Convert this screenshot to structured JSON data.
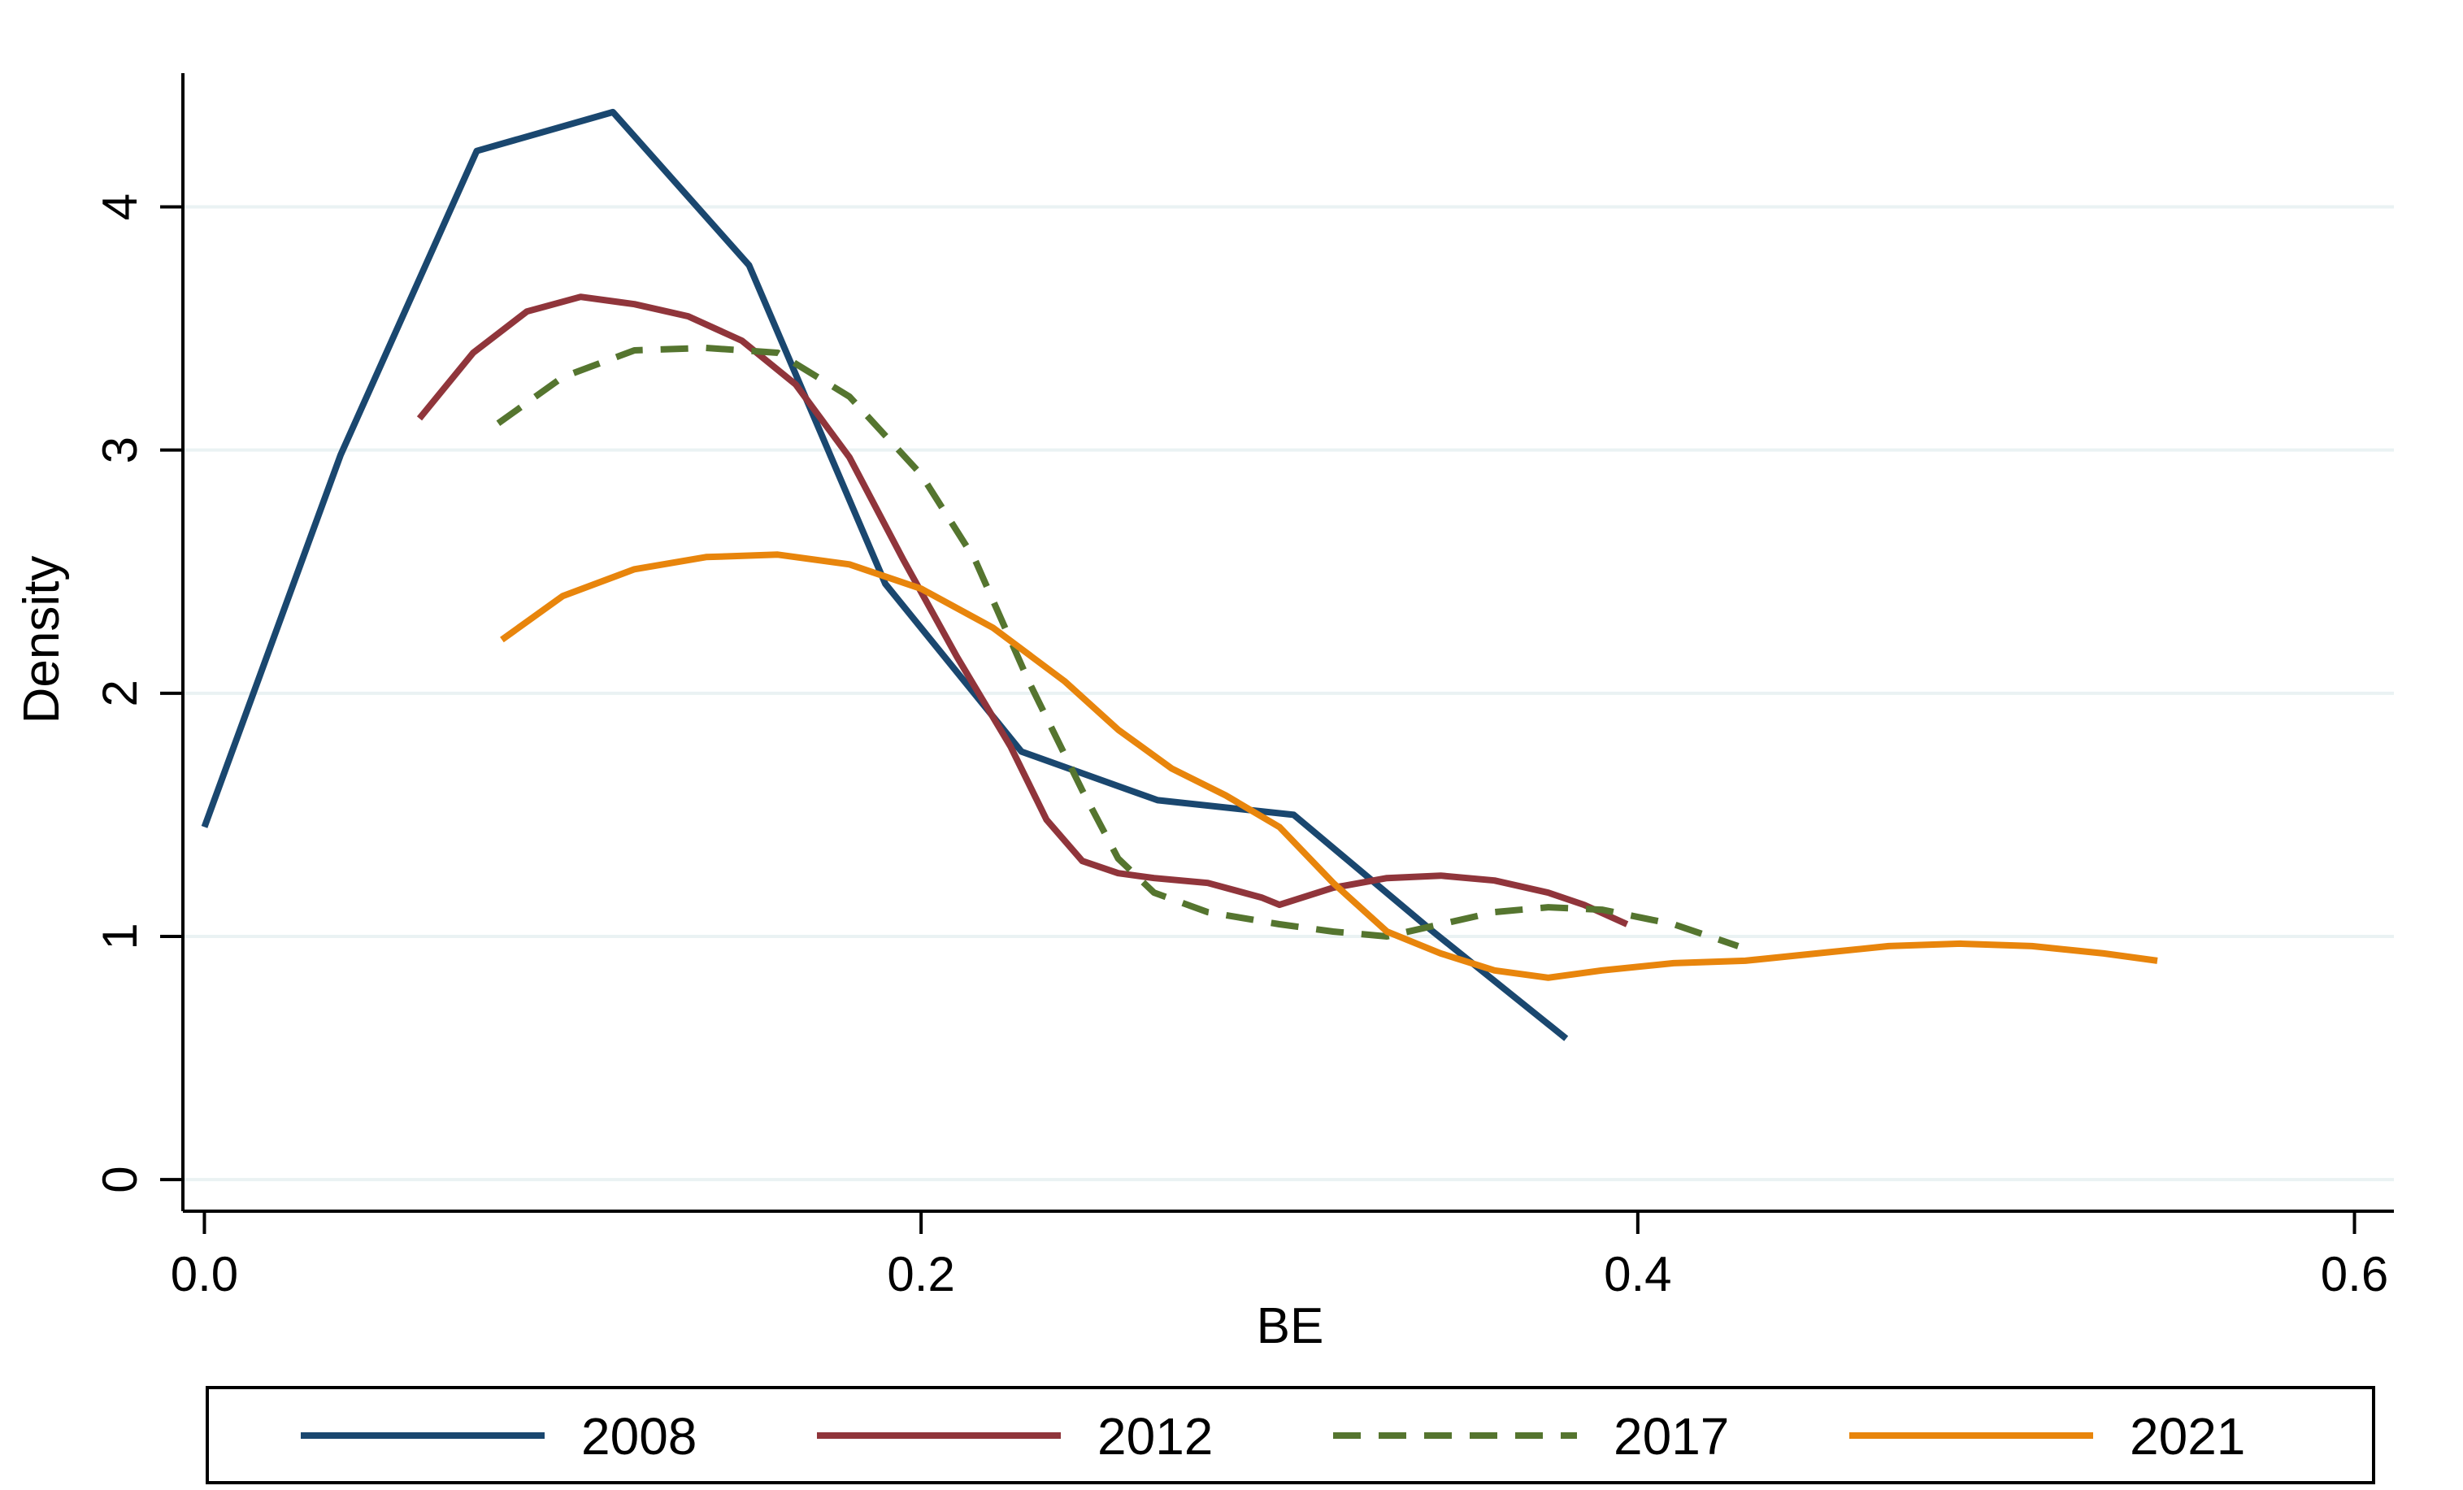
{
  "chart_data": {
    "type": "line",
    "title": "",
    "xlabel": "BE",
    "ylabel": "Density",
    "xlim": [
      -0.006,
      0.611
    ],
    "ylim": [
      -0.13,
      4.55
    ],
    "xticks": [
      0.0,
      0.2,
      0.4,
      0.6
    ],
    "xtick_labels": [
      "0.0",
      "0.2",
      "0.4",
      "0.6"
    ],
    "yticks": [
      0,
      1,
      2,
      3,
      4
    ],
    "ytick_labels": [
      "0",
      "1",
      "2",
      "3",
      "4"
    ],
    "grid": "horizontal",
    "legend_position": "bottom",
    "series": [
      {
        "name": "2008",
        "color": "#1a476f",
        "dash": "solid",
        "x": [
          0.0,
          0.038,
          0.076,
          0.114,
          0.152,
          0.19,
          0.228,
          0.266,
          0.304,
          0.342,
          0.38
        ],
        "y": [
          1.45,
          2.98,
          4.23,
          4.39,
          3.76,
          2.45,
          1.76,
          1.56,
          1.5,
          1.03,
          0.58
        ]
      },
      {
        "name": "2012",
        "color": "#90353b",
        "dash": "solid",
        "x": [
          0.06,
          0.075,
          0.09,
          0.105,
          0.12,
          0.135,
          0.15,
          0.165,
          0.18,
          0.195,
          0.21,
          0.225,
          0.235,
          0.245,
          0.255,
          0.265,
          0.28,
          0.295,
          0.3,
          0.315,
          0.33,
          0.345,
          0.36,
          0.375,
          0.385,
          0.397
        ],
        "y": [
          3.13,
          3.4,
          3.57,
          3.63,
          3.6,
          3.55,
          3.45,
          3.27,
          2.97,
          2.55,
          2.15,
          1.78,
          1.48,
          1.31,
          1.26,
          1.24,
          1.22,
          1.16,
          1.13,
          1.2,
          1.24,
          1.25,
          1.23,
          1.18,
          1.13,
          1.05
        ]
      },
      {
        "name": "2017",
        "color": "#55752f",
        "dash": "dashed",
        "x": [
          0.082,
          0.1,
          0.12,
          0.14,
          0.16,
          0.18,
          0.2,
          0.215,
          0.23,
          0.245,
          0.255,
          0.265,
          0.28,
          0.3,
          0.315,
          0.33,
          0.345,
          0.36,
          0.375,
          0.39,
          0.41,
          0.428
        ],
        "y": [
          3.11,
          3.3,
          3.41,
          3.42,
          3.4,
          3.22,
          2.9,
          2.55,
          2.05,
          1.6,
          1.32,
          1.18,
          1.1,
          1.05,
          1.02,
          1.0,
          1.05,
          1.1,
          1.12,
          1.11,
          1.05,
          0.96
        ]
      },
      {
        "name": "2021",
        "color": "#e8850c",
        "dash": "solid",
        "x": [
          0.083,
          0.1,
          0.12,
          0.14,
          0.16,
          0.18,
          0.2,
          0.22,
          0.24,
          0.255,
          0.27,
          0.285,
          0.3,
          0.315,
          0.33,
          0.345,
          0.36,
          0.375,
          0.39,
          0.41,
          0.43,
          0.45,
          0.47,
          0.49,
          0.51,
          0.53,
          0.545
        ],
        "y": [
          2.22,
          2.4,
          2.51,
          2.56,
          2.57,
          2.53,
          2.43,
          2.27,
          2.05,
          1.85,
          1.69,
          1.58,
          1.45,
          1.22,
          1.02,
          0.93,
          0.86,
          0.83,
          0.86,
          0.89,
          0.9,
          0.93,
          0.96,
          0.97,
          0.96,
          0.93,
          0.9
        ]
      }
    ]
  }
}
